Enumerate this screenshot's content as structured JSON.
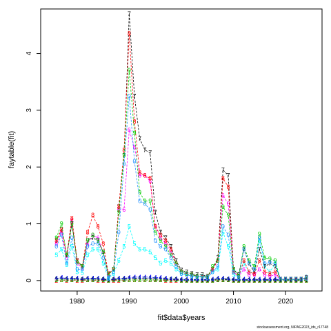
{
  "chart_data": {
    "type": "line",
    "title": "",
    "xlabel": "fit$data$years",
    "ylabel": "faytable(fit)",
    "footnote": "stockassessment.org, NIPAG2023_ids_r17748",
    "xlim": [
      1975,
      2025
    ],
    "ylim": [
      0,
      4.6
    ],
    "xticks": [
      1980,
      1990,
      2000,
      2010,
      2020
    ],
    "yticks": [
      0,
      1,
      2,
      3,
      4
    ],
    "x": [
      1976,
      1977,
      1978,
      1979,
      1980,
      1981,
      1982,
      1983,
      1984,
      1985,
      1986,
      1987,
      1988,
      1989,
      1990,
      1991,
      1992,
      1993,
      1994,
      1995,
      1996,
      1997,
      1998,
      1999,
      2000,
      2001,
      2002,
      2003,
      2004,
      2005,
      2006,
      2007,
      2008,
      2009,
      2010,
      2011,
      2012,
      2013,
      2014,
      2015,
      2016,
      2017,
      2018,
      2019,
      2020,
      2021,
      2022,
      2023,
      2024
    ],
    "series": [
      {
        "label": "1",
        "color": "#000000",
        "values": [
          0.03,
          0.04,
          0.02,
          0.03,
          0.02,
          0.02,
          0.03,
          0.03,
          0.02,
          0.02,
          0.01,
          0.02,
          0.02,
          0.03,
          0.04,
          0.04,
          0.04,
          0.04,
          0.04,
          0.03,
          0.03,
          0.02,
          0.02,
          0.02,
          0.01,
          0.01,
          0.01,
          0.01,
          0.01,
          0.01,
          0.01,
          0.02,
          0.02,
          0.02,
          0.01,
          0.01,
          0.01,
          0.01,
          0.01,
          0.01,
          0.01,
          0.01,
          0.01,
          0.01,
          0.01,
          0.01,
          0.01,
          0.01,
          0.01
        ]
      },
      {
        "label": "2",
        "color": "#ff0000",
        "values": [
          0.0,
          0.01,
          0.0,
          0.01,
          0.0,
          0.0,
          0.01,
          0.01,
          0.0,
          0.0,
          0.0,
          0.0,
          0.0,
          0.01,
          0.01,
          0.01,
          0.01,
          0.01,
          0.01,
          0.01,
          0.01,
          0.0,
          0.0,
          0.0,
          0.0,
          0.0,
          0.0,
          0.0,
          0.0,
          0.0,
          0.0,
          0.01,
          0.01,
          0.01,
          0.0,
          0.0,
          0.0,
          0.0,
          0.0,
          0.0,
          0.0,
          0.0,
          0.0,
          0.0,
          0.0,
          0.0,
          0.0,
          0.0,
          0.0
        ]
      },
      {
        "label": "3",
        "color": "#00cd00",
        "values": [
          0.01,
          0.01,
          0.01,
          0.01,
          0.01,
          0.01,
          0.01,
          0.01,
          0.01,
          0.01,
          0.0,
          0.01,
          0.01,
          0.01,
          0.01,
          0.01,
          0.01,
          0.01,
          0.01,
          0.01,
          0.01,
          0.01,
          0.01,
          0.01,
          0.0,
          0.0,
          0.0,
          0.0,
          0.0,
          0.0,
          0.0,
          0.01,
          0.01,
          0.01,
          0.0,
          0.0,
          0.0,
          0.0,
          0.0,
          0.0,
          0.0,
          0.0,
          0.0,
          0.0,
          0.0,
          0.0,
          0.0,
          0.0,
          0.0
        ]
      },
      {
        "label": "4",
        "color": "#0000ff",
        "values": [
          0.04,
          0.05,
          0.04,
          0.04,
          0.04,
          0.03,
          0.04,
          0.04,
          0.04,
          0.03,
          0.02,
          0.03,
          0.04,
          0.04,
          0.05,
          0.06,
          0.06,
          0.06,
          0.06,
          0.05,
          0.05,
          0.04,
          0.03,
          0.03,
          0.02,
          0.02,
          0.02,
          0.02,
          0.02,
          0.02,
          0.02,
          0.04,
          0.04,
          0.03,
          0.02,
          0.02,
          0.02,
          0.02,
          0.02,
          0.02,
          0.02,
          0.02,
          0.02,
          0.02,
          0.02,
          0.02,
          0.02,
          0.02,
          0.03
        ]
      },
      {
        "label": "5",
        "color": "#00ffff",
        "values": [
          0.45,
          0.55,
          0.28,
          0.6,
          0.15,
          0.14,
          0.45,
          0.55,
          0.55,
          0.3,
          0.04,
          0.12,
          0.35,
          0.6,
          0.95,
          0.65,
          0.55,
          0.55,
          0.5,
          0.4,
          0.3,
          0.35,
          0.3,
          0.2,
          0.12,
          0.1,
          0.08,
          0.06,
          0.07,
          0.05,
          0.15,
          0.2,
          0.85,
          0.6,
          0.1,
          0.05,
          0.3,
          0.15,
          0.15,
          0.7,
          0.25,
          0.15,
          0.3,
          0.02,
          0.02,
          0.02,
          0.02,
          0.02,
          0.04
        ]
      },
      {
        "label": "6",
        "color": "#ff00ff",
        "values": [
          0.65,
          0.85,
          0.4,
          1.05,
          0.3,
          0.22,
          0.65,
          0.8,
          0.75,
          0.5,
          0.1,
          0.2,
          1.25,
          1.25,
          2.65,
          2.35,
          1.85,
          1.85,
          1.75,
          0.95,
          0.75,
          0.65,
          0.5,
          0.3,
          0.15,
          0.12,
          0.1,
          0.08,
          0.08,
          0.06,
          0.2,
          0.35,
          1.5,
          1.35,
          0.15,
          0.08,
          0.2,
          0.1,
          0.1,
          0.2,
          0.1,
          0.08,
          0.1,
          0.02,
          0.02,
          0.02,
          0.02,
          0.02,
          0.05
        ]
      },
      {
        "label": "7",
        "color": "#000000",
        "values": [
          0.7,
          0.9,
          0.45,
          1.0,
          0.35,
          0.25,
          0.7,
          0.75,
          0.7,
          0.5,
          0.12,
          0.2,
          1.3,
          2.2,
          4.7,
          3.25,
          2.5,
          2.3,
          2.25,
          1.2,
          0.85,
          0.75,
          0.6,
          0.35,
          0.18,
          0.15,
          0.12,
          0.1,
          0.1,
          0.08,
          0.2,
          0.4,
          1.95,
          1.85,
          0.2,
          0.1,
          0.55,
          0.3,
          0.15,
          0.55,
          0.25,
          0.3,
          0.25,
          0.02,
          0.02,
          0.02,
          0.02,
          0.02,
          0.05
        ]
      },
      {
        "label": "8",
        "color": "#ff0000",
        "values": [
          0.7,
          0.9,
          0.45,
          1.1,
          0.35,
          0.25,
          0.85,
          1.15,
          0.95,
          0.65,
          0.12,
          0.2,
          1.3,
          2.3,
          4.35,
          2.8,
          1.9,
          1.85,
          1.8,
          0.95,
          0.8,
          0.7,
          0.55,
          0.3,
          0.15,
          0.12,
          0.1,
          0.08,
          0.08,
          0.06,
          0.2,
          0.35,
          1.8,
          1.65,
          0.15,
          0.08,
          0.35,
          0.15,
          0.12,
          0.35,
          0.15,
          0.12,
          0.15,
          0.02,
          0.02,
          0.02,
          0.02,
          0.02,
          0.05
        ]
      },
      {
        "label": "9",
        "color": "#00cd00",
        "values": [
          0.75,
          1.0,
          0.45,
          1.0,
          0.32,
          0.25,
          0.7,
          0.8,
          0.7,
          0.5,
          0.1,
          0.2,
          1.2,
          2.2,
          3.7,
          2.6,
          1.55,
          1.4,
          1.4,
          0.85,
          0.7,
          0.6,
          0.45,
          0.3,
          0.15,
          0.12,
          0.1,
          0.08,
          0.08,
          0.06,
          0.25,
          0.35,
          1.3,
          1.15,
          0.2,
          0.08,
          0.6,
          0.35,
          0.25,
          0.82,
          0.4,
          0.38,
          0.35,
          0.02,
          0.02,
          0.02,
          0.02,
          0.02,
          0.06
        ]
      },
      {
        "label": "0",
        "color": "#1e90ff",
        "values": [
          0.6,
          0.8,
          0.3,
          0.75,
          0.2,
          0.2,
          0.6,
          0.65,
          0.65,
          0.4,
          0.05,
          0.15,
          0.85,
          2.05,
          3.25,
          2.1,
          1.4,
          1.35,
          1.25,
          0.7,
          0.6,
          0.55,
          0.4,
          0.25,
          0.12,
          0.1,
          0.08,
          0.06,
          0.07,
          0.05,
          0.15,
          0.25,
          0.95,
          0.8,
          0.15,
          0.05,
          0.55,
          0.3,
          0.2,
          0.75,
          0.3,
          0.32,
          0.3,
          0.02,
          0.02,
          0.02,
          0.02,
          0.02,
          0.06
        ]
      }
    ]
  }
}
